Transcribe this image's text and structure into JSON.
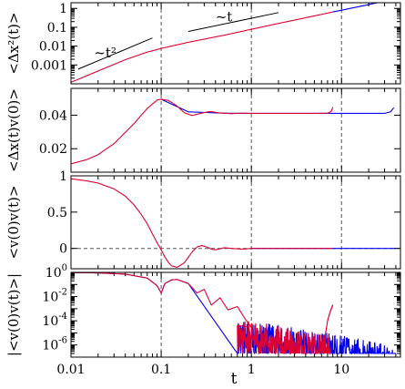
{
  "chart_data": [
    {
      "type": "line",
      "id": "msd",
      "ylabel": "<Δx²(t)>",
      "yscale": "log",
      "ylim": [
        0.0001,
        2
      ],
      "yticks": [
        {
          "v": 1,
          "label": "1"
        },
        {
          "v": 0.1,
          "label": "0.1"
        },
        {
          "v": 0.01,
          "label": "0.01"
        },
        {
          "v": 0.001,
          "label": "0.001"
        }
      ],
      "annotations": [
        {
          "text": "~t²",
          "x": 0.018,
          "y": 0.0025
        },
        {
          "text": "~t",
          "x": 0.4,
          "y": 0.2
        }
      ],
      "guides": [
        {
          "name": "t2",
          "x": [
            0.012,
            0.08
          ],
          "y": [
            0.0006,
            0.027
          ]
        },
        {
          "name": "t1",
          "x": [
            0.2,
            2.0
          ],
          "y": [
            0.06,
            0.6
          ]
        }
      ],
      "series": [
        {
          "color": "#dd0033",
          "x": [
            0.01,
            0.02,
            0.04,
            0.07,
            0.1,
            0.2,
            0.5,
            1,
            2,
            5,
            8
          ],
          "y": [
            0.00012,
            0.00048,
            0.0019,
            0.0048,
            0.0075,
            0.016,
            0.038,
            0.078,
            0.16,
            0.4,
            0.65
          ]
        },
        {
          "color": "#0000ee",
          "x": [
            8,
            10,
            20,
            40
          ],
          "y": [
            0.65,
            0.8,
            1.6,
            3.2
          ]
        }
      ]
    },
    {
      "type": "line",
      "id": "xv",
      "ylabel": "<Δx(t)v(0)>",
      "yscale": "linear",
      "ylim": [
        0.006,
        0.056
      ],
      "yticks": [
        {
          "v": 0.04,
          "label": "0.04"
        },
        {
          "v": 0.02,
          "label": "0.02"
        }
      ],
      "series": [
        {
          "color": "#0000ee",
          "x": [
            0.1,
            0.2,
            0.5,
            1,
            2,
            5,
            10,
            20,
            30,
            35,
            38
          ],
          "y": [
            0.0495,
            0.042,
            0.0412,
            0.0411,
            0.0411,
            0.0411,
            0.0411,
            0.0411,
            0.0411,
            0.042,
            0.0445
          ]
        },
        {
          "color": "#dd0033",
          "x": [
            0.01,
            0.015,
            0.02,
            0.03,
            0.05,
            0.07,
            0.09,
            0.1,
            0.12,
            0.15,
            0.18,
            0.22,
            0.28,
            0.35,
            0.45,
            0.6,
            0.8,
            1,
            2,
            5,
            7,
            7.7,
            8
          ],
          "y": [
            0.011,
            0.0135,
            0.0165,
            0.023,
            0.035,
            0.044,
            0.049,
            0.0495,
            0.0488,
            0.0455,
            0.0415,
            0.0398,
            0.0412,
            0.0422,
            0.0413,
            0.0409,
            0.0412,
            0.0411,
            0.0411,
            0.0411,
            0.0412,
            0.0422,
            0.0448
          ]
        }
      ]
    },
    {
      "type": "line",
      "id": "vv",
      "ylabel": "<v(0)v(t)>",
      "yscale": "linear",
      "ylim": [
        -0.28,
        1.0
      ],
      "yticks": [
        {
          "v": 1,
          "label": "1"
        },
        {
          "v": 0.5,
          "label": "0.5"
        },
        {
          "v": 0,
          "label": "0"
        }
      ],
      "series": [
        {
          "color": "#0000ee",
          "x": [
            1,
            2,
            5,
            10,
            20,
            40
          ],
          "y": [
            0,
            0,
            0,
            0,
            0,
            0
          ]
        },
        {
          "color": "#dd0033",
          "x": [
            0.01,
            0.015,
            0.02,
            0.03,
            0.04,
            0.05,
            0.06,
            0.07,
            0.08,
            0.09,
            0.1,
            0.11,
            0.12,
            0.13,
            0.15,
            0.18,
            0.2,
            0.22,
            0.25,
            0.28,
            0.32,
            0.36,
            0.4,
            0.5,
            0.6,
            0.8,
            1,
            2,
            5,
            8
          ],
          "y": [
            0.96,
            0.93,
            0.9,
            0.82,
            0.72,
            0.6,
            0.47,
            0.34,
            0.2,
            0.08,
            -0.02,
            -0.12,
            -0.19,
            -0.24,
            -0.26,
            -0.2,
            -0.12,
            -0.05,
            0.02,
            0.04,
            0.02,
            -0.01,
            -0.02,
            0.01,
            0.0,
            -0.01,
            0.0,
            0.0,
            0.0,
            0.0
          ]
        }
      ]
    },
    {
      "type": "line",
      "id": "absvv",
      "ylabel": "|<v(0)v(t)>|",
      "yscale": "log",
      "ylim": [
        1e-07,
        1.0
      ],
      "yticks": [
        {
          "v": 1,
          "label": "10",
          "exp": "0"
        },
        {
          "v": 0.01,
          "label": "10",
          "exp": "-2"
        },
        {
          "v": 0.0001,
          "label": "10",
          "exp": "-4"
        },
        {
          "v": 1e-06,
          "label": "10",
          "exp": "-6"
        }
      ],
      "series": [
        {
          "color": "#0000ee",
          "noise": [
            0.7,
            40
          ],
          "x": [
            0.01,
            0.02,
            0.04,
            0.07,
            0.09,
            0.1,
            0.11,
            0.13,
            0.15,
            0.2
          ],
          "y": [
            0.96,
            0.9,
            0.72,
            0.34,
            0.08,
            0.02,
            0.12,
            0.24,
            0.26,
            0.12
          ]
        },
        {
          "color": "#dd0033",
          "noise": [
            0.7,
            7.5
          ],
          "x": [
            0.01,
            0.02,
            0.04,
            0.07,
            0.09,
            0.1,
            0.11,
            0.13,
            0.15,
            0.2,
            0.25,
            0.3,
            0.36,
            0.45,
            0.55,
            0.7,
            0.85,
            1.0
          ],
          "y": [
            0.96,
            0.9,
            0.72,
            0.34,
            0.08,
            0.02,
            0.12,
            0.24,
            0.26,
            0.12,
            0.02,
            0.04,
            0.002,
            0.008,
            0.0008,
            0.0015,
            0.00015,
            3e-05
          ]
        },
        {
          "color": "#dd0033",
          "x": [
            6.5,
            7,
            7.5,
            8
          ],
          "y": [
            3e-06,
            0.0001,
            0.0006,
            0.002
          ]
        }
      ]
    }
  ],
  "xaxis": {
    "label": "t",
    "scale": "log",
    "xlim": [
      0.01,
      45
    ],
    "ticks": [
      {
        "v": 0.01,
        "label": "0.01"
      },
      {
        "v": 0.1,
        "label": "0.1"
      },
      {
        "v": 1,
        "label": "1"
      },
      {
        "v": 10,
        "label": "10"
      }
    ],
    "vlines": [
      0.1,
      1,
      10
    ]
  }
}
